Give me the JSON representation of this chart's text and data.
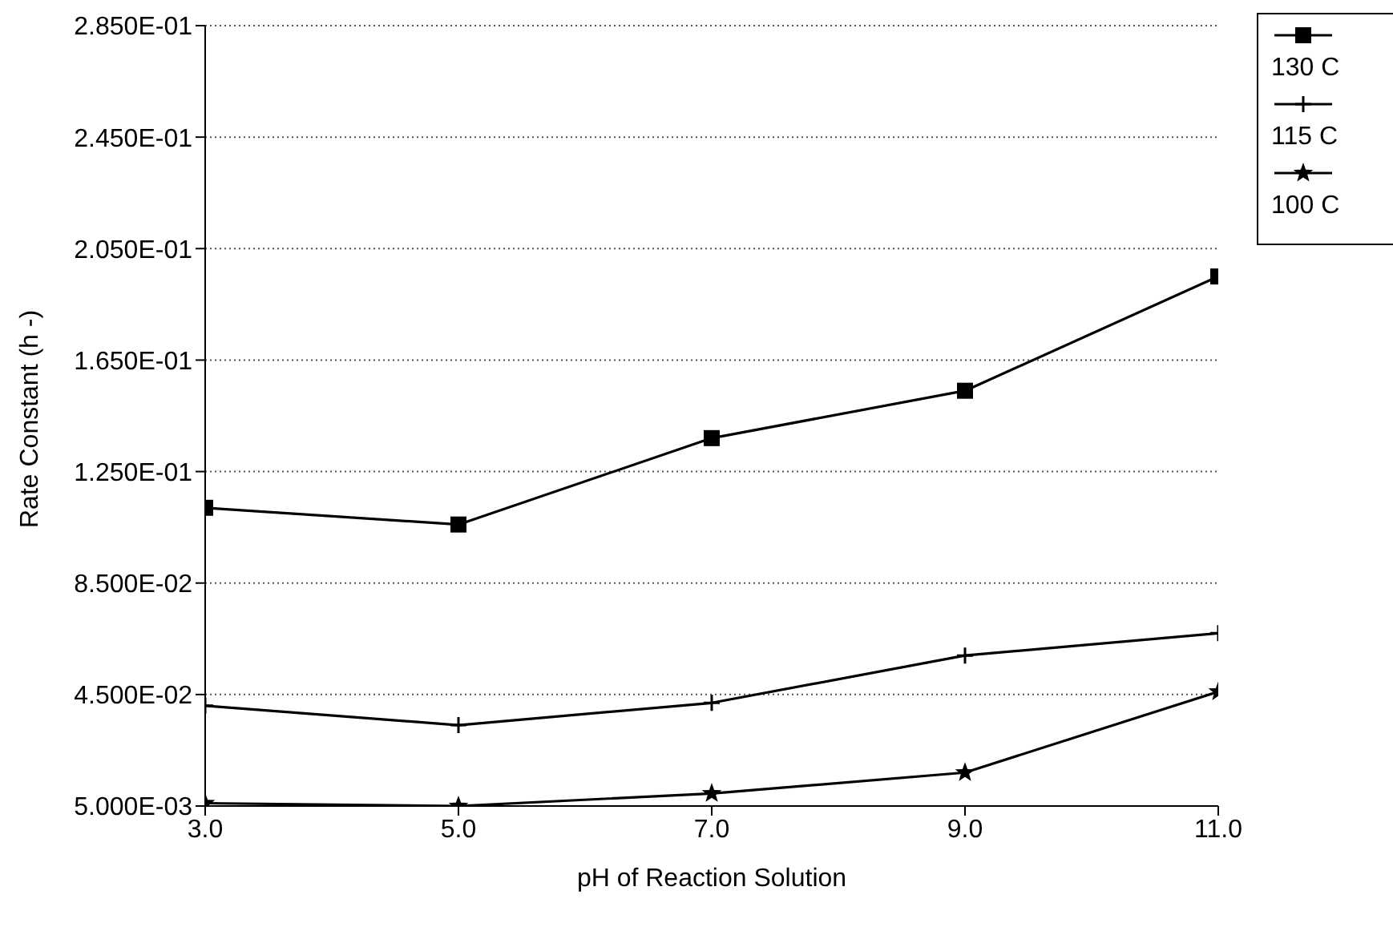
{
  "chart_data": {
    "type": "line",
    "xlabel": "pH of Reaction Solution",
    "ylabel": "Rate Constant (h -)",
    "x": [
      3,
      5,
      7,
      9,
      11
    ],
    "xlim": [
      3,
      11
    ],
    "xticks": [
      {
        "value": 3,
        "label": "3.0"
      },
      {
        "value": 5,
        "label": "5.0"
      },
      {
        "value": 7,
        "label": "7.0"
      },
      {
        "value": 9,
        "label": "9.0"
      },
      {
        "value": 11,
        "label": "11.0"
      }
    ],
    "ylim": [
      0.005,
      0.285
    ],
    "yticks": [
      {
        "value": 0.005,
        "label": "5.000E-03"
      },
      {
        "value": 0.045,
        "label": "4.500E-02"
      },
      {
        "value": 0.085,
        "label": "8.500E-02"
      },
      {
        "value": 0.125,
        "label": "1.250E-01"
      },
      {
        "value": 0.165,
        "label": "1.650E-01"
      },
      {
        "value": 0.205,
        "label": "2.050E-01"
      },
      {
        "value": 0.245,
        "label": "2.450E-01"
      },
      {
        "value": 0.285,
        "label": "2.850E-01"
      }
    ],
    "grid": "y",
    "legend": "right",
    "line_style": "solid",
    "series": [
      {
        "name": "130 C",
        "color": "#000000",
        "marker": "square",
        "values": [
          0.112,
          0.106,
          0.137,
          0.154,
          0.195
        ]
      },
      {
        "name": "115 C",
        "color": "#000000",
        "marker": "cross",
        "values": [
          0.041,
          0.034,
          0.042,
          0.059,
          0.067
        ]
      },
      {
        "name": "100 C",
        "color": "#000000",
        "marker": "star",
        "values": [
          0.006,
          0.005,
          0.0095,
          0.017,
          0.046
        ]
      }
    ]
  }
}
